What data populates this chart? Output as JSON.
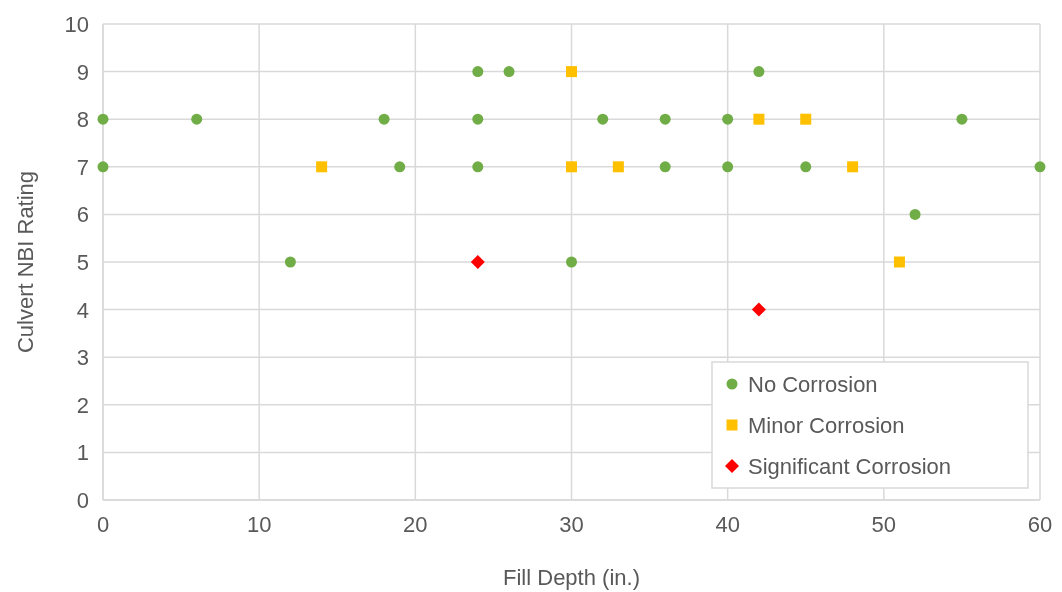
{
  "chart_data": {
    "type": "scatter",
    "xlabel": "Fill Depth (in.)",
    "ylabel": "Culvert NBI Rating",
    "xlim": [
      0,
      60
    ],
    "xticks": [
      0,
      10,
      20,
      30,
      40,
      50,
      60
    ],
    "ylim": [
      0,
      10
    ],
    "yticks": [
      0,
      1,
      2,
      3,
      4,
      5,
      6,
      7,
      8,
      9,
      10
    ],
    "grid": true,
    "legend": "bottom right",
    "series": [
      {
        "name": "No Corrosion",
        "color": "#70ad47",
        "marker": "circle",
        "x": [
          0,
          0,
          6,
          12,
          18,
          19,
          24,
          24,
          24,
          26,
          30,
          32,
          36,
          36,
          40,
          40,
          42,
          45,
          52,
          55,
          60
        ],
        "values": [
          8,
          7,
          8,
          5,
          8,
          7,
          9,
          8,
          7,
          9,
          5,
          8,
          8,
          7,
          8,
          7,
          9,
          7,
          6,
          8,
          7
        ]
      },
      {
        "name": "Minor Corrosion",
        "color": "#ffc000",
        "marker": "square",
        "x": [
          14,
          30,
          30,
          33,
          42,
          45,
          48,
          51
        ],
        "values": [
          7,
          9,
          7,
          7,
          8,
          8,
          7,
          5
        ]
      },
      {
        "name": "Significant Corrosion",
        "color": "#ff0000",
        "marker": "diamond",
        "x": [
          24,
          42
        ],
        "values": [
          5,
          4
        ]
      }
    ]
  }
}
